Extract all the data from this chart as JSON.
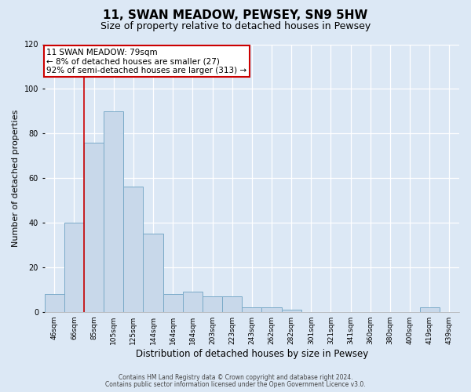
{
  "title": "11, SWAN MEADOW, PEWSEY, SN9 5HW",
  "subtitle": "Size of property relative to detached houses in Pewsey",
  "xlabel": "Distribution of detached houses by size in Pewsey",
  "ylabel": "Number of detached properties",
  "bar_labels": [
    "46sqm",
    "66sqm",
    "85sqm",
    "105sqm",
    "125sqm",
    "144sqm",
    "164sqm",
    "184sqm",
    "203sqm",
    "223sqm",
    "243sqm",
    "262sqm",
    "282sqm",
    "301sqm",
    "321sqm",
    "341sqm",
    "360sqm",
    "380sqm",
    "400sqm",
    "419sqm",
    "439sqm"
  ],
  "bar_values": [
    8,
    40,
    76,
    90,
    56,
    35,
    8,
    9,
    7,
    7,
    2,
    2,
    1,
    0,
    0,
    0,
    0,
    0,
    0,
    2,
    0
  ],
  "bar_color": "#c8d8ea",
  "bar_edge_color": "#7aaac8",
  "ylim": [
    0,
    120
  ],
  "yticks": [
    0,
    20,
    40,
    60,
    80,
    100,
    120
  ],
  "vline_x": 1.5,
  "vline_color": "#cc0000",
  "annotation_title": "11 SWAN MEADOW: 79sqm",
  "annotation_line1": "← 8% of detached houses are smaller (27)",
  "annotation_line2": "92% of semi-detached houses are larger (313) →",
  "annotation_box_color": "#cc0000",
  "footer_line1": "Contains HM Land Registry data © Crown copyright and database right 2024.",
  "footer_line2": "Contains public sector information licensed under the Open Government Licence v3.0.",
  "bg_color": "#dce8f5",
  "plot_bg_color": "#dce8f5",
  "title_fontsize": 11,
  "subtitle_fontsize": 9,
  "tick_label_fontsize": 6.5,
  "ylabel_fontsize": 8,
  "xlabel_fontsize": 8.5,
  "annotation_fontsize": 7.5,
  "footer_fontsize": 5.5
}
